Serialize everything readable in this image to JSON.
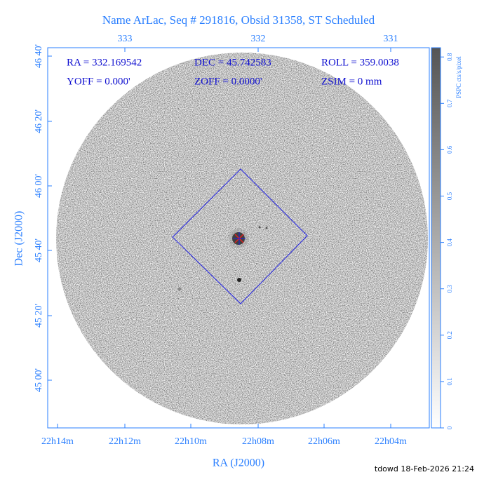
{
  "title": "Name ArLac, Seq # 291816, Obsid 31358, ST Scheduled",
  "overlay": [
    "RA = 332.169542",
    "DEC = 45.742583",
    "ROLL = 359.0038",
    "YOFF =   0.000'",
    "ZOFF =  0.0000'",
    "ZSIM = 0 mm"
  ],
  "top_axis": {
    "labels": [
      "333",
      "332",
      "331"
    ]
  },
  "bottom_axis": {
    "title": "RA (J2000)",
    "labels": [
      "22h14m",
      "22h12m",
      "22h10m",
      "22h08m",
      "22h06m",
      "22h04m"
    ]
  },
  "left_axis": {
    "title": "Dec (J2000)",
    "labels": [
      "46 40'",
      "46 20'",
      "46 00'",
      "45 40'",
      "45 20'",
      "45 00'"
    ]
  },
  "colorbar": {
    "label": "PSPC cts/s/pixel",
    "range": [
      0,
      0.82
    ],
    "ticks": [
      0,
      0.1,
      0.2,
      0.3,
      0.4,
      0.5,
      0.6,
      0.7,
      0.8
    ]
  },
  "footer": "tdowd 18-Feb-2026 21:24"
}
